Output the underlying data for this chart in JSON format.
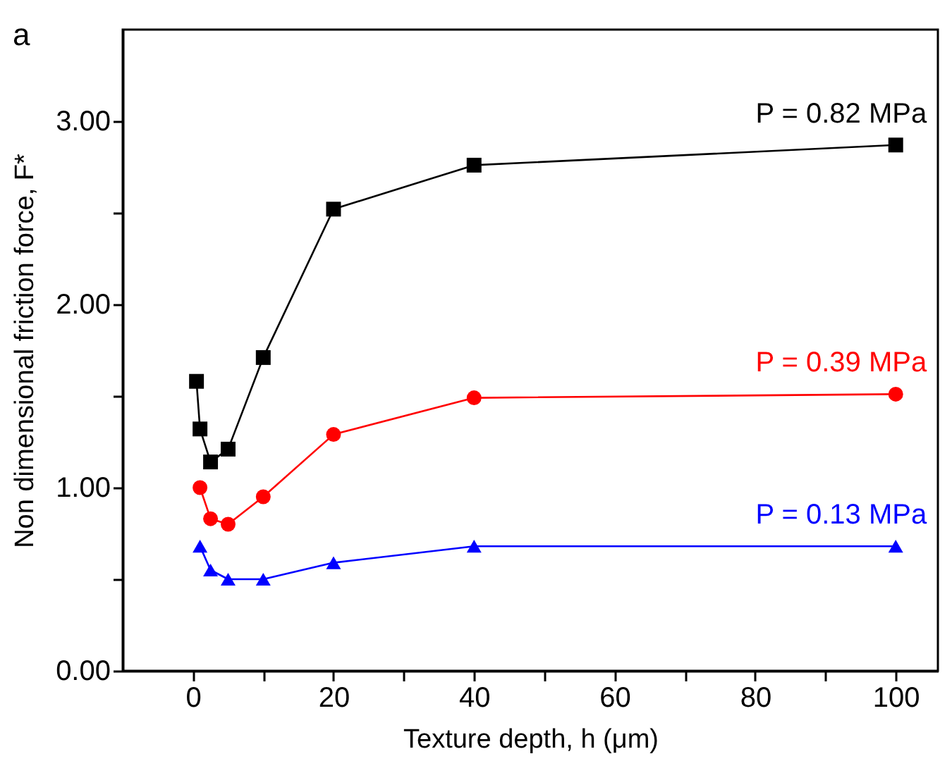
{
  "chart_data": {
    "type": "line",
    "xlabel": "Texture depth, h (μm)",
    "ylabel": "Non dimensional friction force, F*",
    "annotations": [
      "a"
    ],
    "xlim": [
      -10,
      106
    ],
    "ylim": [
      0,
      3.5
    ],
    "xticks": [
      0,
      {
        "value": 10,
        "label": null
      },
      20,
      {
        "value": 30,
        "label": null
      },
      40,
      {
        "value": 50,
        "label": null
      },
      60,
      {
        "value": 70,
        "label": null
      },
      80,
      {
        "value": 90,
        "label": null
      },
      100
    ],
    "yticks": [
      {
        "value": 0,
        "label": "0.00"
      },
      {
        "value": 0.5,
        "label": null
      },
      {
        "value": 1,
        "label": "1.00"
      },
      {
        "value": 1.5,
        "label": null
      },
      {
        "value": 2,
        "label": "2.00"
      },
      {
        "value": 2.5,
        "label": null
      },
      {
        "value": 3,
        "label": "3.00"
      }
    ],
    "grid": false,
    "series": [
      {
        "name": "P = 0.82 MPa",
        "color": "#000000",
        "marker": "square",
        "x": [
          0.5,
          1,
          2.5,
          5,
          10,
          20,
          40,
          100
        ],
        "values": [
          1.58,
          1.32,
          1.14,
          1.21,
          1.71,
          2.52,
          2.76,
          2.87
        ]
      },
      {
        "name": "P = 0.39 MPa",
        "color": "#ff0000",
        "marker": "circle",
        "x": [
          1,
          2.5,
          5,
          10,
          20,
          40,
          100
        ],
        "values": [
          1.0,
          0.83,
          0.8,
          0.95,
          1.29,
          1.49,
          1.51
        ]
      },
      {
        "name": "P = 0.13 MPa",
        "color": "#0000ff",
        "marker": "triangle",
        "x": [
          1,
          2.5,
          5,
          10,
          20,
          40,
          100
        ],
        "values": [
          0.68,
          0.55,
          0.5,
          0.5,
          0.59,
          0.68,
          0.68
        ]
      }
    ]
  }
}
